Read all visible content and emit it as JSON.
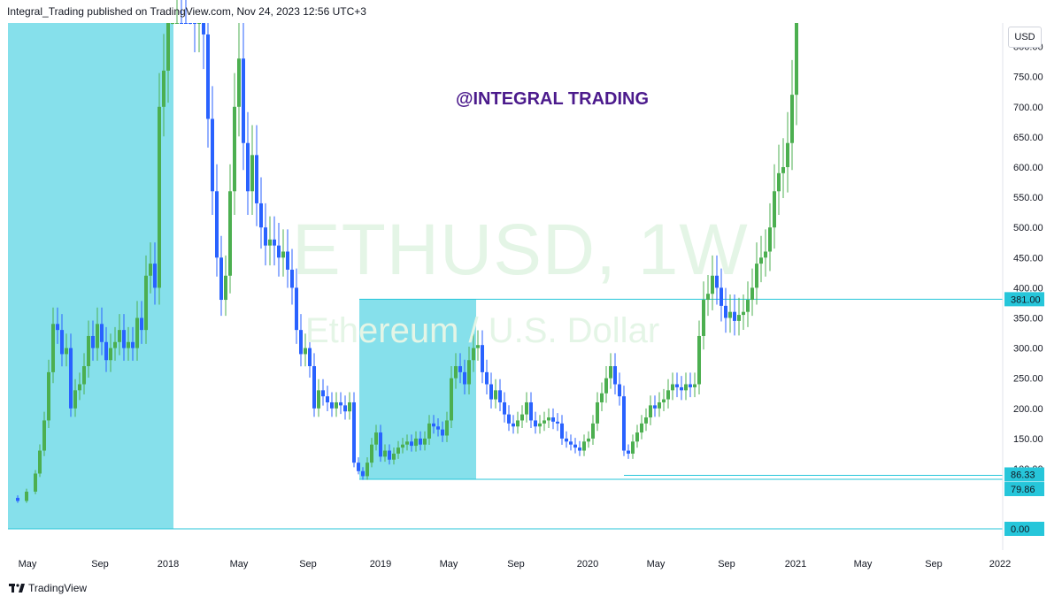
{
  "header": {
    "text": "Integral_Trading published on TradingView.com, Nov 24, 2023 12:56 UTC+3"
  },
  "watermark": {
    "symbol": "ETHUSD, 1W",
    "description": "Ethereum / U.S. Dollar"
  },
  "brand_text": "@INTEGRAL TRADING",
  "currency": "USD",
  "footer": {
    "logo_text": "TradingView"
  },
  "colors": {
    "bull": "#4caf50",
    "bear": "#2962ff",
    "box": "#80deea",
    "line": "#26c6da",
    "tag": "#26c6da"
  },
  "chart_data": {
    "type": "candlestick",
    "symbol": "ETHUSD",
    "timeframe": "1W",
    "y_ticks": [
      "100.00",
      "150.00",
      "200.00",
      "250.00",
      "300.00",
      "350.00",
      "400.00",
      "450.00",
      "500.00",
      "550.00",
      "600.00",
      "650.00",
      "700.00",
      "750.00",
      "800.00"
    ],
    "x_ticks": [
      "May",
      "Sep",
      "2018",
      "May",
      "Sep",
      "2019",
      "May",
      "Sep",
      "2020",
      "May",
      "Sep",
      "2021",
      "May",
      "Sep",
      "2022"
    ],
    "horizontal_levels": [
      {
        "value": 381.0,
        "label": "381.00"
      },
      {
        "value": 86.33,
        "label": "86.33"
      },
      {
        "value": 79.86,
        "label": "79.86"
      },
      {
        "value": 0.0,
        "label": "0.00"
      }
    ],
    "zones": [
      {
        "from": "2017-03",
        "to": "2017-12",
        "low": 0,
        "high": 800
      },
      {
        "from": "2018-11",
        "to": "2019-07",
        "low": 79.86,
        "high": 381
      }
    ],
    "ylim": [
      0,
      840
    ],
    "y_scale": "log"
  }
}
